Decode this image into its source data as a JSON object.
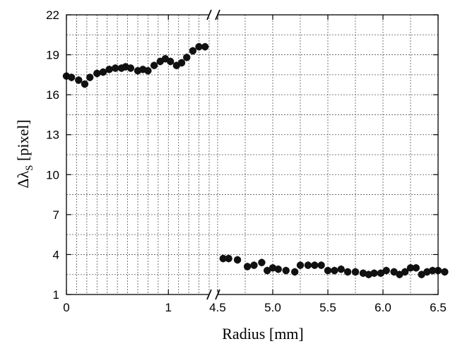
{
  "chart_data": {
    "type": "scatter",
    "xlabel": "Radius  [mm]",
    "ylabel_main": "Δλ",
    "ylabel_sub": "S",
    "ylabel_unit": " [pixel]",
    "ylim": [
      1,
      22
    ],
    "yticks": [
      "1",
      "4",
      "7",
      "10",
      "13",
      "16",
      "19",
      "22"
    ],
    "y_tick_values": [
      1,
      4,
      7,
      10,
      13,
      16,
      19,
      22
    ],
    "segments": [
      {
        "xlim": [
          0,
          1.4
        ],
        "xticks": [
          "0",
          "1"
        ],
        "x_tick_values": [
          0,
          1
        ],
        "minor_grid_step": 0.1,
        "points": [
          [
            0.0,
            17.4
          ],
          [
            0.05,
            17.3
          ],
          [
            0.12,
            17.1
          ],
          [
            0.18,
            16.8
          ],
          [
            0.23,
            17.3
          ],
          [
            0.3,
            17.6
          ],
          [
            0.36,
            17.7
          ],
          [
            0.42,
            17.9
          ],
          [
            0.48,
            18.0
          ],
          [
            0.54,
            18.0
          ],
          [
            0.58,
            18.1
          ],
          [
            0.63,
            18.0
          ],
          [
            0.7,
            17.8
          ],
          [
            0.75,
            17.9
          ],
          [
            0.8,
            17.8
          ],
          [
            0.86,
            18.2
          ],
          [
            0.92,
            18.5
          ],
          [
            0.97,
            18.7
          ],
          [
            1.02,
            18.5
          ],
          [
            1.08,
            18.2
          ],
          [
            1.13,
            18.4
          ],
          [
            1.18,
            18.8
          ],
          [
            1.24,
            19.3
          ],
          [
            1.3,
            19.6
          ],
          [
            1.36,
            19.6
          ]
        ]
      },
      {
        "xlim": [
          4.5,
          6.5
        ],
        "xticks": [
          "4.5",
          "5.0",
          "5.5",
          "6.0",
          "6.5"
        ],
        "x_tick_values": [
          4.5,
          5.0,
          5.5,
          6.0,
          6.5
        ],
        "minor_grid_step": 0.25,
        "points": [
          [
            4.55,
            3.7
          ],
          [
            4.6,
            3.7
          ],
          [
            4.68,
            3.6
          ],
          [
            4.77,
            3.1
          ],
          [
            4.83,
            3.2
          ],
          [
            4.9,
            3.4
          ],
          [
            4.95,
            2.8
          ],
          [
            5.0,
            3.0
          ],
          [
            5.05,
            2.9
          ],
          [
            5.12,
            2.8
          ],
          [
            5.2,
            2.7
          ],
          [
            5.25,
            3.2
          ],
          [
            5.32,
            3.2
          ],
          [
            5.38,
            3.2
          ],
          [
            5.44,
            3.2
          ],
          [
            5.5,
            2.8
          ],
          [
            5.56,
            2.8
          ],
          [
            5.62,
            2.9
          ],
          [
            5.68,
            2.7
          ],
          [
            5.75,
            2.7
          ],
          [
            5.82,
            2.6
          ],
          [
            5.87,
            2.5
          ],
          [
            5.92,
            2.6
          ],
          [
            5.98,
            2.6
          ],
          [
            6.03,
            2.8
          ],
          [
            6.1,
            2.7
          ],
          [
            6.15,
            2.5
          ],
          [
            6.2,
            2.7
          ],
          [
            6.25,
            3.0
          ],
          [
            6.3,
            3.0
          ],
          [
            6.35,
            2.5
          ],
          [
            6.4,
            2.7
          ],
          [
            6.45,
            2.8
          ],
          [
            6.5,
            2.8
          ],
          [
            6.56,
            2.7
          ]
        ]
      }
    ],
    "grid": true,
    "legend": "none",
    "marker_color": "#111111"
  }
}
